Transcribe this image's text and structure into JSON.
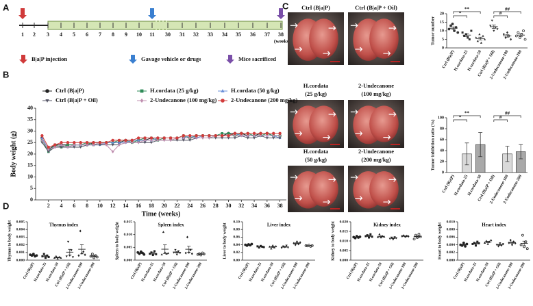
{
  "panels": [
    "A",
    "B",
    "C",
    "D"
  ],
  "timeline": {
    "weeks": [
      1,
      2,
      3,
      4,
      5,
      6,
      7,
      8,
      9,
      10,
      11,
      30,
      31,
      32,
      33,
      34,
      35,
      36,
      37,
      38
    ],
    "unit": "(weeks)",
    "bar_color": "#d5e6b5",
    "legend": [
      {
        "label": "B|a|P injection",
        "color": "#d03a3a"
      },
      {
        "label": "Gavage vehicle or drugs",
        "color": "#3a7fd0"
      },
      {
        "label": "Mice sacrificed",
        "color": "#7a4fa8"
      }
    ]
  },
  "photos": [
    [
      "Ctrl (B|a|P)"
    ],
    [
      "Ctrl (B|a|P + Oil)"
    ],
    [
      "H.cordata",
      "(25 g/kg)"
    ],
    [
      "2-Undecanone",
      "(100 mg/kg)"
    ],
    [
      "H.cordata",
      "(50 g/kg)"
    ],
    [
      "2-Undecanone",
      "(200 mg/kg)"
    ]
  ],
  "chart_data": [
    {
      "type": "line",
      "x_label": "Time (weeks)",
      "y_label": "Body weight (g)",
      "legend": "top",
      "x": [
        1,
        2,
        3,
        4,
        5,
        6,
        7,
        8,
        9,
        10,
        11,
        12,
        13,
        14,
        15,
        16,
        17,
        18,
        19,
        20,
        21,
        22,
        23,
        24,
        25,
        26,
        27,
        28,
        29,
        30,
        31,
        32,
        33,
        34,
        35,
        36,
        37,
        38
      ],
      "xlim": [
        0,
        39
      ],
      "xticks": [
        2,
        4,
        6,
        8,
        10,
        12,
        14,
        16,
        18,
        20,
        22,
        24,
        26,
        28,
        30,
        32,
        34,
        36,
        38
      ],
      "ylim": [
        0,
        40
      ],
      "yticks": [
        0,
        5,
        10,
        15,
        20,
        25,
        30,
        35,
        40
      ],
      "series": [
        {
          "name": "Ctrl (B|a|P)",
          "color": "#222222",
          "marker": "circle",
          "values": [
            27,
            22,
            24,
            24,
            24,
            24,
            24,
            24,
            25,
            25,
            25,
            25,
            25,
            26,
            26,
            26,
            26,
            27,
            27,
            27,
            27,
            27,
            27,
            27,
            28,
            28,
            28,
            28,
            28,
            29,
            29,
            29,
            28,
            28,
            29,
            29,
            28,
            28
          ]
        },
        {
          "name": "H.cordata (25 g/kg)",
          "color": "#2e8b57",
          "marker": "square",
          "values": [
            26,
            21,
            24,
            23,
            24,
            24,
            24,
            25,
            24,
            25,
            25,
            25,
            26,
            26,
            25,
            26,
            27,
            27,
            26,
            27,
            27,
            27,
            28,
            27,
            28,
            28,
            28,
            28,
            29,
            29,
            28,
            29,
            29,
            28,
            28,
            29,
            28,
            28
          ]
        },
        {
          "name": "H.cordata  (50 g/kg)",
          "color": "#6a8fd8",
          "marker": "triangle",
          "values": [
            27,
            22,
            23,
            24,
            23,
            24,
            24,
            24,
            24,
            24,
            25,
            25,
            25,
            25,
            26,
            26,
            26,
            26,
            27,
            27,
            27,
            27,
            27,
            28,
            27,
            28,
            28,
            28,
            28,
            28,
            29,
            28,
            28,
            28,
            28,
            28,
            28,
            27
          ]
        },
        {
          "name": "Ctrl (B|a|P + Oil)",
          "color": "#555566",
          "marker": "triangle-down",
          "values": [
            25,
            21,
            23,
            23,
            23,
            23,
            23,
            24,
            24,
            24,
            24,
            24,
            24,
            25,
            25,
            25,
            25,
            25,
            26,
            26,
            26,
            26,
            26,
            26,
            27,
            27,
            27,
            27,
            27,
            27,
            27,
            28,
            27,
            27,
            28,
            27,
            27,
            27
          ]
        },
        {
          "name": "2-Undecanone (100 mg/kg)",
          "color": "#c090b0",
          "marker": "diamond",
          "values": [
            26,
            22,
            23,
            24,
            23,
            24,
            24,
            24,
            24,
            25,
            24,
            21,
            24,
            25,
            25,
            25,
            26,
            26,
            26,
            26,
            26,
            27,
            27,
            27,
            27,
            27,
            27,
            28,
            28,
            28,
            28,
            28,
            28,
            28,
            28,
            28,
            28,
            28
          ]
        },
        {
          "name": "2-Undecanone (200 mg/kg)",
          "color": "#d23c3c",
          "marker": "circle",
          "values": [
            28,
            23,
            24,
            25,
            25,
            25,
            25,
            25,
            25,
            25,
            25,
            26,
            26,
            26,
            26,
            27,
            27,
            27,
            27,
            27,
            27,
            27,
            28,
            28,
            28,
            28,
            28,
            28,
            28,
            28,
            29,
            29,
            29,
            29,
            29,
            29,
            29,
            29
          ]
        }
      ]
    },
    {
      "type": "dotplot",
      "y_label": "Tumor number",
      "color": "#333333",
      "markers": [
        "circle",
        "square",
        "triangle",
        "triangle-down",
        "diamond",
        "open-circle"
      ],
      "categories": [
        "Ctrl (B|a|P)",
        "H.cordata-25",
        "H.cordata-50",
        "Ctrl (B|a|P + Oil)",
        "2-Undecanone-100",
        "2-Undecanone-200"
      ],
      "ylim": [
        0,
        20
      ],
      "yticks": [
        0,
        5,
        10,
        15,
        20
      ],
      "points": [
        [
          11,
          13,
          14,
          10,
          12,
          9
        ],
        [
          9,
          7,
          8,
          6,
          5,
          10
        ],
        [
          6,
          4,
          8,
          3,
          7,
          5
        ],
        [
          13,
          16,
          10,
          12,
          11
        ],
        [
          8,
          6,
          9,
          7,
          5
        ],
        [
          7,
          9,
          6,
          8,
          10,
          5
        ]
      ],
      "means": [
        11.5,
        7.5,
        5.5,
        12.4,
        7,
        7.5
      ],
      "errors": [
        0.8,
        0.8,
        0.8,
        1,
        0.7,
        0.8
      ],
      "annotations": [
        {
          "text": "*",
          "between": [
            0,
            1
          ]
        },
        {
          "text": "**",
          "between": [
            0,
            2
          ]
        },
        {
          "text": "#",
          "between": [
            3,
            4
          ]
        },
        {
          "text": "##",
          "between": [
            3,
            5
          ]
        }
      ]
    },
    {
      "type": "bar",
      "y_label": "Tumor inhibition ratio (%)",
      "categories": [
        "Ctrl (B|a|P)",
        "H.cordata-25",
        "H.cordata-50",
        "Ctrl (B|a|P + Oil)",
        "2-Undecanone-100",
        "2-Undecanone-200"
      ],
      "ylim": [
        0,
        100
      ],
      "yticks": [
        0,
        20,
        40,
        60,
        80,
        100
      ],
      "values": [
        null,
        34,
        51,
        null,
        34,
        38
      ],
      "errors": [
        null,
        20,
        22,
        null,
        14,
        13
      ],
      "colors": [
        null,
        "#d9d9d9",
        "#a9a9a9",
        null,
        "#d9d9d9",
        "#a9a9a9"
      ],
      "annotations": [
        {
          "text": "*",
          "between": [
            0,
            1
          ]
        },
        {
          "text": "**",
          "between": [
            0,
            2
          ]
        },
        {
          "text": "#",
          "between": [
            3,
            4
          ]
        },
        {
          "text": "##",
          "between": [
            3,
            5
          ]
        }
      ]
    },
    {
      "type": "dotplot",
      "title": "Thymus index",
      "y_label": "Thymus to body weight",
      "color": "#222222",
      "markers": [
        "circle",
        "square",
        "triangle",
        "triangle-down",
        "diamond",
        "open-circle"
      ],
      "categories": [
        "Ctrl (B|a|P)",
        "H.cordata-25",
        "H.cordata-50",
        "Ctrl (B|a|P + Oil)",
        "2-Undecanone-100",
        "2-Undecanone-200"
      ],
      "ylim": [
        0,
        0.005
      ],
      "yticks": [
        {
          "value": 0,
          "label": "0.000"
        },
        0.001,
        0.002,
        0.003,
        0.004,
        0.005
      ],
      "points": [
        [
          0.0007,
          0.0006,
          0.0008,
          0.0005,
          0.0006
        ],
        [
          0.0005,
          0.0008,
          0.0003,
          0.0006,
          0.0004
        ],
        [
          0.0003,
          0.0005,
          0.0002,
          0.0004,
          0.0003
        ],
        [
          0.0005,
          0.0024,
          0.0006,
          0.0013,
          0.0004
        ],
        [
          0.0006,
          0.0038,
          0.0009,
          0.0011,
          0.0007
        ],
        [
          0.0005,
          0.0008,
          0.0003,
          0.0006,
          0.0004
        ]
      ],
      "means": [
        0.00064,
        0.00052,
        0.00034,
        0.00104,
        0.00142,
        0.00052
      ],
      "errors": [
        5e-05,
        9e-05,
        5e-05,
        0.00037,
        0.0006,
        9e-05
      ]
    },
    {
      "type": "dotplot",
      "title": "Spleen index",
      "y_label": "Spleen to body weight",
      "color": "#222222",
      "markers": [
        "circle",
        "square",
        "triangle",
        "triangle-down",
        "diamond",
        "open-circle"
      ],
      "categories": [
        "Ctrl (B|a|P)",
        "H.cordata-25",
        "H.cordata-50",
        "Ctrl (B|a|P + Oil)",
        "2-Undecanone-100",
        "2-Undecanone-200"
      ],
      "ylim": [
        0,
        0.015
      ],
      "yticks": [
        {
          "value": 0,
          "label": "0.000"
        },
        0.005,
        {
          "value": 0.01,
          "label": "0.010"
        },
        0.015
      ],
      "points": [
        [
          0.003,
          0.0025,
          0.0033,
          0.0028,
          0.0022
        ],
        [
          0.0025,
          0.003,
          0.002,
          0.0035,
          0.0023
        ],
        [
          0.0022,
          0.011,
          0.003,
          0.0025,
          0.0027
        ],
        [
          0.003,
          0.004,
          0.0022,
          0.0035,
          0.0028
        ],
        [
          0.0028,
          0.009,
          0.003,
          0.004,
          0.0025
        ],
        [
          0.0022,
          0.0025,
          0.002,
          0.0028,
          0.0024
        ]
      ],
      "means": [
        0.00276,
        0.00266,
        0.00428,
        0.0031,
        0.00426,
        0.00238
      ],
      "errors": [
        0.0002,
        0.0003,
        0.0017,
        0.0003,
        0.0012,
        0.00013
      ]
    },
    {
      "type": "dotplot",
      "title": "Liver index",
      "y_label": "Liver to body weight",
      "color": "#222222",
      "markers": [
        "circle",
        "square",
        "triangle",
        "triangle-down",
        "diamond",
        "open-circle"
      ],
      "categories": [
        "Ctrl (B|a|P)",
        "H.cordata-25",
        "H.cordata-50",
        "Ctrl (B|a|P + Oil)",
        "2-Undecanone-100",
        "2-Undecanone-200"
      ],
      "ylim": [
        0,
        0.1
      ],
      "yticks": [
        {
          "value": 0,
          "label": "0.00"
        },
        0.02,
        0.04,
        0.06,
        0.08,
        {
          "value": 0.1,
          "label": "0.10"
        }
      ],
      "points": [
        [
          0.04,
          0.038,
          0.041,
          0.039,
          0.042
        ],
        [
          0.036,
          0.033,
          0.037,
          0.035,
          0.034
        ],
        [
          0.035,
          0.03,
          0.038,
          0.033,
          0.036
        ],
        [
          0.032,
          0.036,
          0.034,
          0.038,
          0.033
        ],
        [
          0.044,
          0.04,
          0.048,
          0.042,
          0.046
        ],
        [
          0.038,
          0.037,
          0.039,
          0.036,
          0.038
        ]
      ],
      "means": [
        0.04,
        0.035,
        0.0344,
        0.0346,
        0.044,
        0.0376
      ],
      "errors": [
        0.0007,
        0.0007,
        0.0014,
        0.0011,
        0.0014,
        0.0005
      ]
    },
    {
      "type": "dotplot",
      "title": "Kidney index",
      "y_label": "Kidney to body weight",
      "color": "#222222",
      "markers": [
        "circle",
        "square",
        "triangle",
        "triangle-down",
        "diamond",
        "open-circle"
      ],
      "categories": [
        "Ctrl (B|a|P)",
        "H.cordata-25",
        "H.cordata-50",
        "Ctrl (B|a|P + Oil)",
        "2-Undecanone-100",
        "2-Undecanone-200"
      ],
      "ylim": [
        0,
        0.02
      ],
      "yticks": [
        {
          "value": 0,
          "label": "0.000"
        },
        0.005,
        {
          "value": 0.01,
          "label": "0.010"
        },
        0.015,
        {
          "value": 0.02,
          "label": "0.020"
        }
      ],
      "points": [
        [
          0.012,
          0.0115,
          0.0125,
          0.0118,
          0.0122
        ],
        [
          0.0125,
          0.013,
          0.0118,
          0.0135,
          0.0122
        ],
        [
          0.012,
          0.0135,
          0.0118,
          0.0125,
          0.0122
        ],
        [
          0.0112,
          0.0118,
          0.0108,
          0.012,
          0.0115
        ],
        [
          0.0125,
          0.0128,
          0.0122,
          0.0126,
          0.0124
        ],
        [
          0.011,
          0.013,
          0.0118,
          0.0135,
          0.0122
        ]
      ],
      "means": [
        0.012,
        0.0126,
        0.0124,
        0.01146,
        0.0125,
        0.0123
      ],
      "errors": [
        0.00017,
        0.0003,
        0.0003,
        0.0002,
        0.0001,
        0.0004
      ]
    },
    {
      "type": "dotplot",
      "title": "Heart index",
      "y_label": "Heart to body weight",
      "color": "#222222",
      "markers": [
        "circle",
        "square",
        "triangle",
        "triangle-down",
        "diamond",
        "open-circle"
      ],
      "categories": [
        "Ctrl (B|a|P)",
        "H.cordata-25",
        "H.cordata-50",
        "Ctrl (B|a|P + Oil)",
        "2-Undecanone-100",
        "2-Undecanone-200"
      ],
      "ylim": [
        0,
        0.01
      ],
      "yticks": [
        {
          "value": 0,
          "label": "0.000"
        },
        0.002,
        0.004,
        0.006,
        0.008,
        {
          "value": 0.01,
          "label": "0.010"
        }
      ],
      "points": [
        [
          0.004,
          0.0038,
          0.0045,
          0.0036,
          0.0042
        ],
        [
          0.0042,
          0.0045,
          0.0038,
          0.0048,
          0.0044
        ],
        [
          0.0045,
          0.005,
          0.0042,
          0.0048,
          0.0052
        ],
        [
          0.004,
          0.0036,
          0.0044,
          0.0038,
          0.0042
        ],
        [
          0.0045,
          0.0052,
          0.004,
          0.0048,
          0.0044
        ],
        [
          0.004,
          0.0065,
          0.0035,
          0.0048,
          0.003
        ]
      ],
      "means": [
        0.00402,
        0.00434,
        0.00474,
        0.004,
        0.00458,
        0.00436
      ],
      "errors": [
        0.00016,
        0.00017,
        0.00018,
        0.00014,
        0.0002,
        0.0006
      ]
    }
  ]
}
